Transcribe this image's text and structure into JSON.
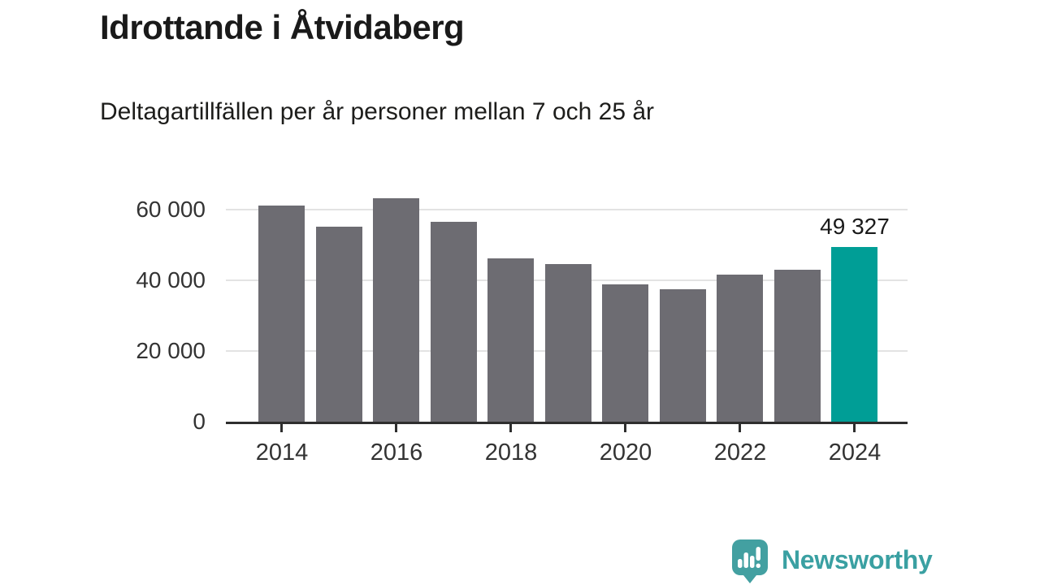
{
  "header": {
    "title": "Idrottande i Åtvidaberg",
    "subtitle": "Deltagartillfällen per år personer mellan 7 och 25 år"
  },
  "chart_data": {
    "type": "bar",
    "title": "Idrottande i Åtvidaberg",
    "subtitle": "Deltagartillfällen per år personer mellan 7 och 25 år",
    "categories": [
      "2014",
      "2015",
      "2016",
      "2017",
      "2018",
      "2019",
      "2020",
      "2021",
      "2022",
      "2023",
      "2024"
    ],
    "values": [
      61200,
      55100,
      63300,
      56600,
      46200,
      44600,
      38900,
      37400,
      41600,
      43100,
      49327
    ],
    "highlight_index": 10,
    "highlight_value_label": "49 327",
    "yticks": [
      {
        "value": 0,
        "label": "0"
      },
      {
        "value": 20000,
        "label": "20 000"
      },
      {
        "value": 40000,
        "label": "40 000"
      },
      {
        "value": 60000,
        "label": "60 000"
      }
    ],
    "xtick_labels": [
      "2014",
      "2016",
      "2018",
      "2020",
      "2022",
      "2024"
    ],
    "ylim": [
      0,
      66000
    ],
    "xlabel": "",
    "ylabel": "",
    "grid": "horizontal",
    "legend": "none",
    "bar_color": "#6d6c72",
    "highlight_color": "#009e96"
  },
  "footer": {
    "brand": "Newsworthy",
    "logo_icon": "bar-chart-speech-bubble-icon",
    "logo_color": "#43a0a1",
    "text_color": "#3aa0a2"
  }
}
